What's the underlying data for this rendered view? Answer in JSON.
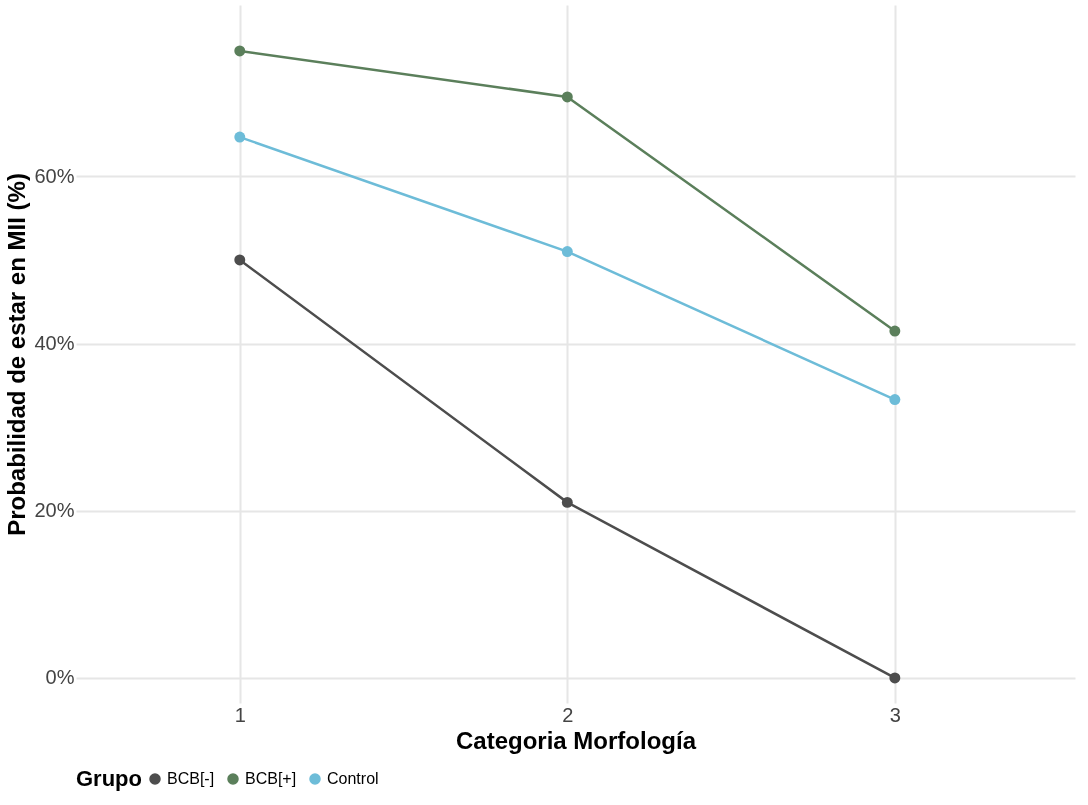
{
  "chart_data": {
    "type": "line",
    "xlabel": "Categoria Morfología",
    "ylabel": "Probabilidad de estar en MII (%)",
    "legend_title": "Grupo",
    "x": [
      1,
      2,
      3
    ],
    "series": [
      {
        "name": "BCB[-]",
        "color": "#4d4d4d",
        "values": [
          50,
          21,
          0
        ]
      },
      {
        "name": "BCB[+]",
        "color": "#5b7f5b",
        "values": [
          75,
          69.5,
          41.5
        ]
      },
      {
        "name": "Control",
        "color": "#6dbcd8",
        "values": [
          64.7,
          51,
          33.3
        ]
      }
    ],
    "xlim": [
      0.5,
      3.55
    ],
    "xticks": [
      1,
      2,
      3
    ],
    "ylim": [
      -3,
      80.5
    ],
    "yticks": [
      {
        "value": 0,
        "label": "0%"
      },
      {
        "value": 20,
        "label": "20%"
      },
      {
        "value": 40,
        "label": "40%"
      },
      {
        "value": 60,
        "label": "60%"
      }
    ],
    "grid": true,
    "legend": "bottom",
    "marker": "circle",
    "line_style": "solid"
  }
}
